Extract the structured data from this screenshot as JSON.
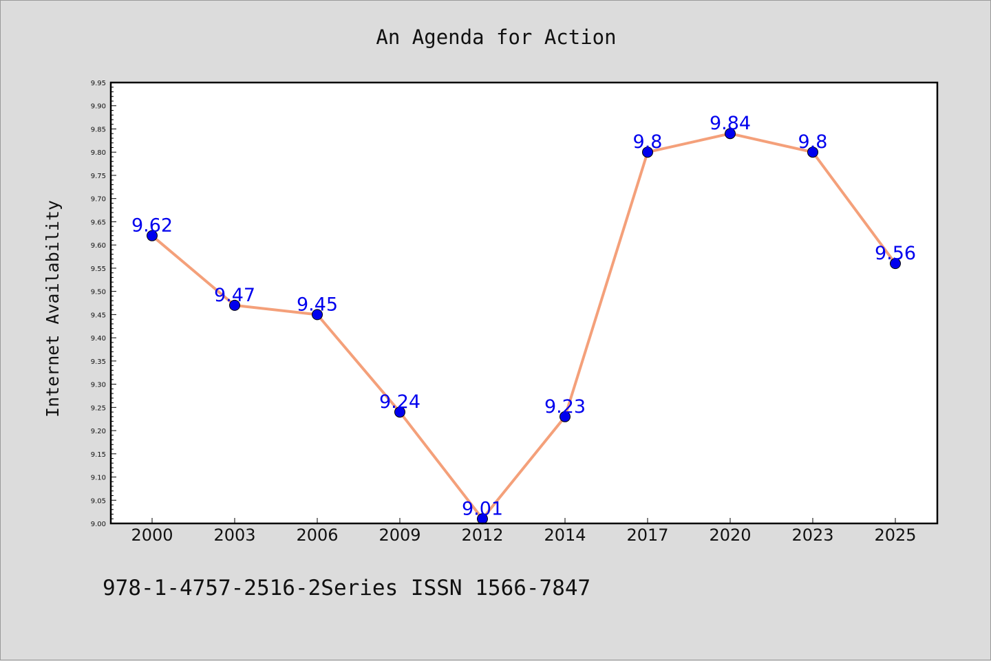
{
  "chart_data": {
    "type": "line",
    "title": "An Agenda for Action",
    "ylabel": "Internet Availability",
    "xlabel": "",
    "categories": [
      "2000",
      "2003",
      "2006",
      "2009",
      "2012",
      "2014",
      "2017",
      "2020",
      "2023",
      "2025"
    ],
    "series": [
      {
        "values": [
          9.62,
          9.47,
          9.45,
          9.24,
          9.01,
          9.23,
          9.8,
          9.84,
          9.8,
          9.56
        ]
      }
    ],
    "data_labels": [
      "9.62",
      "9.47",
      "9.45",
      "9.24",
      "9.01",
      "9.23",
      "9.8",
      "9.84",
      "9.8",
      "9.56"
    ],
    "ylim": [
      9.0,
      9.95
    ],
    "yticks": [
      "9.00",
      "9.05",
      "9.10",
      "9.15",
      "9.20",
      "9.25",
      "9.30",
      "9.35",
      "9.40",
      "9.45",
      "9.50",
      "9.55",
      "9.60",
      "9.65",
      "9.70",
      "9.75",
      "9.80",
      "9.85",
      "9.90",
      "9.95"
    ],
    "grid": false,
    "colors": {
      "line": "#f4a07a",
      "marker": "#0000ee",
      "label": "#0000ee",
      "background": "#dcdcdc",
      "plot_background": "#ffffff"
    }
  },
  "footer": {
    "text": "978-1-4757-2516-2Series ISSN 1566-7847"
  }
}
